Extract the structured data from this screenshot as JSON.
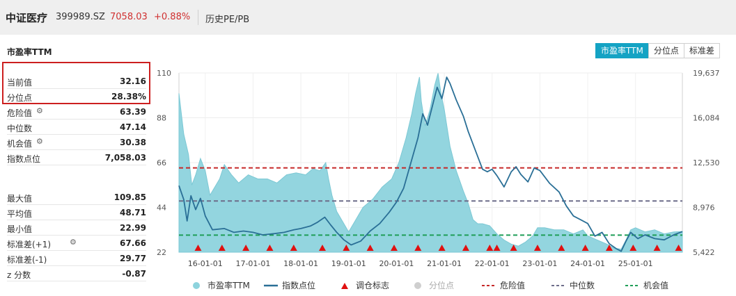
{
  "header": {
    "title": "中证医疗",
    "code": "399989.SZ",
    "price": "7058.03",
    "change": "+0.88%",
    "tab": "历史PE/PB"
  },
  "metric_label": "市盈率TTM",
  "buttons": [
    "市盈率TTM",
    "分位点",
    "标准差"
  ],
  "stats_top": [
    {
      "label": "当前值",
      "value": "32.16"
    },
    {
      "label": "分位点",
      "value": "28.38%"
    },
    {
      "label": "危险值",
      "value": "63.39",
      "gear": true
    },
    {
      "label": "中位数",
      "value": "47.14"
    },
    {
      "label": "机会值",
      "value": "30.38",
      "gear": true
    },
    {
      "label": "指数点位",
      "value": "7,058.03"
    }
  ],
  "stats_bottom": [
    {
      "label": "最大值",
      "value": "109.85"
    },
    {
      "label": "平均值",
      "value": "48.71"
    },
    {
      "label": "最小值",
      "value": "22.99"
    },
    {
      "label": "标准差(+1)",
      "value": "67.66",
      "gear": true
    },
    {
      "label": "标准差(-1)",
      "value": "29.77"
    },
    {
      "label": "z 分数",
      "value": "-0.87"
    }
  ],
  "colors": {
    "accent": "#14a3c4",
    "area": "#8dd3dd",
    "index_line": "#2a6f96",
    "danger": "#c62828",
    "median": "#6d6d8a",
    "opportunity": "#1e9e57",
    "marker": "#e01010",
    "price_up": "#d03030"
  },
  "chart_data": {
    "type": "area",
    "x_ticks": [
      "16-01-01",
      "17-01-01",
      "18-01-01",
      "19-01-01",
      "20-01-01",
      "21-01-01",
      "22-01-01",
      "23-01-01",
      "24-01-01",
      "25-01-01"
    ],
    "x_range": [
      2015.45,
      2025.98
    ],
    "y_left_ticks": [
      "110",
      "88",
      "66",
      "44",
      "22"
    ],
    "y_left_range": [
      22,
      110
    ],
    "y_right_ticks": [
      "19,637",
      "16,084",
      "12,530",
      "8,976",
      "5,422"
    ],
    "y_right_range": [
      5422,
      19637
    ],
    "reference_lines": {
      "danger": 63.39,
      "median": 47.14,
      "opportunity": 30.38
    },
    "pe_series": [
      [
        2015.45,
        100
      ],
      [
        2015.55,
        80
      ],
      [
        2015.65,
        70
      ],
      [
        2015.72,
        55
      ],
      [
        2015.8,
        60
      ],
      [
        2015.9,
        68
      ],
      [
        2016.0,
        62
      ],
      [
        2016.1,
        50
      ],
      [
        2016.3,
        58
      ],
      [
        2016.4,
        65
      ],
      [
        2016.55,
        60
      ],
      [
        2016.7,
        56
      ],
      [
        2016.9,
        60
      ],
      [
        2017.1,
        58
      ],
      [
        2017.3,
        58
      ],
      [
        2017.5,
        56
      ],
      [
        2017.7,
        60
      ],
      [
        2017.9,
        61
      ],
      [
        2018.1,
        60
      ],
      [
        2018.25,
        63
      ],
      [
        2018.4,
        62
      ],
      [
        2018.52,
        66
      ],
      [
        2018.58,
        58
      ],
      [
        2018.65,
        50
      ],
      [
        2018.75,
        42
      ],
      [
        2018.9,
        36
      ],
      [
        2019.0,
        32
      ],
      [
        2019.1,
        36
      ],
      [
        2019.3,
        44
      ],
      [
        2019.5,
        48
      ],
      [
        2019.7,
        54
      ],
      [
        2019.9,
        58
      ],
      [
        2020.05,
        66
      ],
      [
        2020.2,
        78
      ],
      [
        2020.32,
        90
      ],
      [
        2020.4,
        100
      ],
      [
        2020.48,
        108
      ],
      [
        2020.52,
        96
      ],
      [
        2020.6,
        84
      ],
      [
        2020.7,
        92
      ],
      [
        2020.8,
        104
      ],
      [
        2020.87,
        109.85
      ],
      [
        2020.93,
        100
      ],
      [
        2021.0,
        92
      ],
      [
        2021.12,
        74
      ],
      [
        2021.25,
        62
      ],
      [
        2021.4,
        52
      ],
      [
        2021.5,
        46
      ],
      [
        2021.6,
        38
      ],
      [
        2021.7,
        36
      ],
      [
        2021.8,
        36
      ],
      [
        2021.95,
        35
      ],
      [
        2022.1,
        31
      ],
      [
        2022.25,
        28
      ],
      [
        2022.4,
        26
      ],
      [
        2022.55,
        25
      ],
      [
        2022.7,
        27
      ],
      [
        2022.85,
        30
      ],
      [
        2022.95,
        34
      ],
      [
        2023.1,
        34
      ],
      [
        2023.3,
        33
      ],
      [
        2023.5,
        33
      ],
      [
        2023.7,
        31
      ],
      [
        2023.9,
        33
      ],
      [
        2024.0,
        30
      ],
      [
        2024.2,
        28
      ],
      [
        2024.4,
        26
      ],
      [
        2024.55,
        24
      ],
      [
        2024.7,
        23.5
      ],
      [
        2024.8,
        28
      ],
      [
        2024.9,
        33
      ],
      [
        2025.0,
        34
      ],
      [
        2025.2,
        32
      ],
      [
        2025.4,
        33
      ],
      [
        2025.6,
        31
      ],
      [
        2025.8,
        32
      ],
      [
        2025.98,
        32.16
      ]
    ],
    "index_series": [
      [
        2015.45,
        10700
      ],
      [
        2015.55,
        9600
      ],
      [
        2015.62,
        7900
      ],
      [
        2015.7,
        9900
      ],
      [
        2015.8,
        8800
      ],
      [
        2015.9,
        9700
      ],
      [
        2016.0,
        8300
      ],
      [
        2016.15,
        7200
      ],
      [
        2016.4,
        7300
      ],
      [
        2016.6,
        7000
      ],
      [
        2016.8,
        7100
      ],
      [
        2017.0,
        7000
      ],
      [
        2017.2,
        6800
      ],
      [
        2017.45,
        6900
      ],
      [
        2017.65,
        7000
      ],
      [
        2017.85,
        7200
      ],
      [
        2018.0,
        7300
      ],
      [
        2018.2,
        7500
      ],
      [
        2018.35,
        7800
      ],
      [
        2018.5,
        8200
      ],
      [
        2018.62,
        7600
      ],
      [
        2018.75,
        7000
      ],
      [
        2018.9,
        6400
      ],
      [
        2019.05,
        6000
      ],
      [
        2019.25,
        6300
      ],
      [
        2019.45,
        7100
      ],
      [
        2019.65,
        7700
      ],
      [
        2019.85,
        8600
      ],
      [
        2020.0,
        9400
      ],
      [
        2020.15,
        10500
      ],
      [
        2020.3,
        12500
      ],
      [
        2020.45,
        14500
      ],
      [
        2020.55,
        16400
      ],
      [
        2020.65,
        15500
      ],
      [
        2020.75,
        17000
      ],
      [
        2020.85,
        18500
      ],
      [
        2020.95,
        17600
      ],
      [
        2021.05,
        19300
      ],
      [
        2021.12,
        18800
      ],
      [
        2021.25,
        17500
      ],
      [
        2021.4,
        16200
      ],
      [
        2021.5,
        15000
      ],
      [
        2021.65,
        13500
      ],
      [
        2021.8,
        12000
      ],
      [
        2021.9,
        11800
      ],
      [
        2022.0,
        12000
      ],
      [
        2022.1,
        11500
      ],
      [
        2022.25,
        10600
      ],
      [
        2022.4,
        11800
      ],
      [
        2022.5,
        12200
      ],
      [
        2022.6,
        11600
      ],
      [
        2022.75,
        11000
      ],
      [
        2022.88,
        12100
      ],
      [
        2023.0,
        11900
      ],
      [
        2023.2,
        10900
      ],
      [
        2023.4,
        10200
      ],
      [
        2023.55,
        9100
      ],
      [
        2023.7,
        8300
      ],
      [
        2023.85,
        8000
      ],
      [
        2024.0,
        7700
      ],
      [
        2024.15,
        6700
      ],
      [
        2024.3,
        7000
      ],
      [
        2024.45,
        6100
      ],
      [
        2024.6,
        5700
      ],
      [
        2024.7,
        5500
      ],
      [
        2024.8,
        6300
      ],
      [
        2024.9,
        7000
      ],
      [
        2025.05,
        6500
      ],
      [
        2025.2,
        6800
      ],
      [
        2025.4,
        6500
      ],
      [
        2025.6,
        6400
      ],
      [
        2025.8,
        6800
      ],
      [
        2025.98,
        7058
      ]
    ],
    "rebalance_markers": [
      2015.85,
      2016.35,
      2016.85,
      2017.35,
      2017.85,
      2018.45,
      2018.95,
      2019.45,
      2019.95,
      2020.45,
      2020.95,
      2021.45,
      2021.95,
      2022.1,
      2022.45,
      2022.95,
      2023.45,
      2023.95,
      2024.45,
      2024.95,
      2025.45,
      2025.9
    ],
    "legend": [
      {
        "name": "市盈率TTM",
        "kind": "dot"
      },
      {
        "name": "指数点位",
        "kind": "line"
      },
      {
        "name": "调仓标志",
        "kind": "triangle"
      },
      {
        "name": "分位点",
        "kind": "dot-gray"
      },
      {
        "name": "危险值",
        "kind": "dash-danger"
      },
      {
        "name": "中位数",
        "kind": "dash-median"
      },
      {
        "name": "机会值",
        "kind": "dash-opportunity"
      }
    ]
  }
}
